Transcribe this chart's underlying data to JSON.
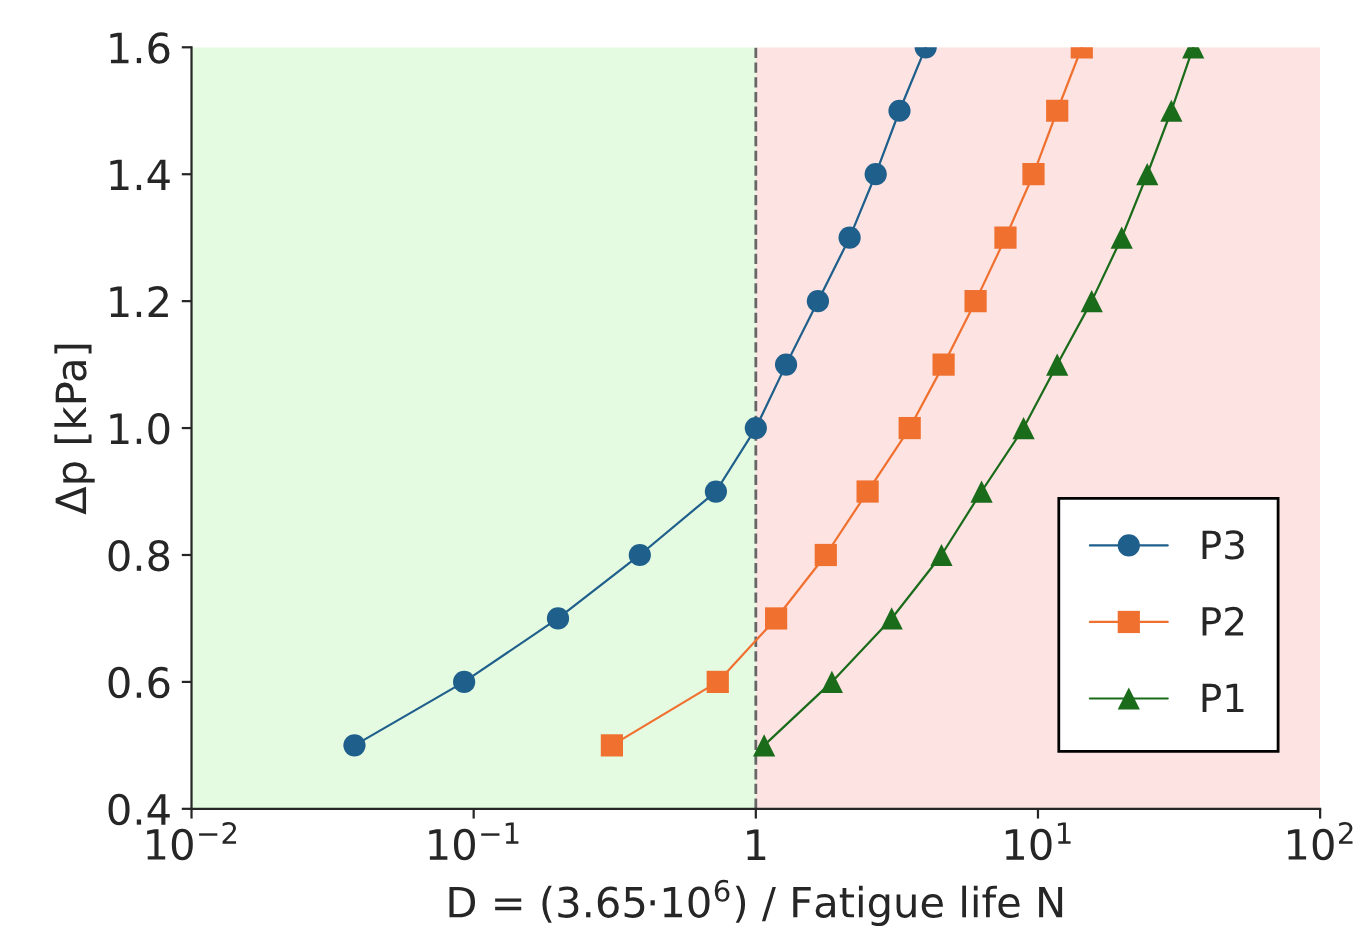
{
  "chart_data": {
    "type": "line",
    "xlabel": "D = (3.65·10$^{6}$) / Fatigue life N",
    "ylabel": "Δp [kPa]",
    "log": "x",
    "xlim": [
      0.01,
      100
    ],
    "ylim": [
      0.4,
      1.6
    ],
    "xticks": [
      {
        "value": 0.01,
        "label": "10$^{−2}$"
      },
      {
        "value": 0.1,
        "label": "10$^{−1}$"
      },
      {
        "value": 1,
        "label": "1"
      },
      {
        "value": 10,
        "label": "10$^{1}$"
      },
      {
        "value": 100,
        "label": "10$^{2}$"
      }
    ],
    "yticks": [
      0.4,
      0.6,
      0.8,
      {
        "value": 1,
        "label": "1.0"
      },
      1.2,
      1.4,
      1.6
    ],
    "grid": false,
    "legend": "bottom right",
    "line_style": "solid",
    "ref_lines": [
      {
        "axis": "x",
        "value": 1,
        "color": "#666666",
        "line_style": "dashed"
      }
    ],
    "bands": [
      {
        "axis": "x",
        "from": 0.01,
        "to": 1,
        "color": "#e4fbe2"
      },
      {
        "axis": "x",
        "from": 1,
        "to": 100,
        "color": "#fde4e2"
      }
    ],
    "series": [
      {
        "name": "P3",
        "color": "#1f5f8b",
        "marker": "circle",
        "x": [
          0.0378,
          0.0925,
          0.199,
          0.388,
          0.722,
          1.0,
          1.28,
          1.66,
          2.15,
          2.66,
          3.23,
          4.0
        ],
        "values": [
          0.5,
          0.6,
          0.7,
          0.8,
          0.9,
          1.0,
          1.1,
          1.2,
          1.3,
          1.4,
          1.5,
          1.6
        ]
      },
      {
        "name": "P2",
        "color": "#f07030",
        "marker": "square",
        "x": [
          0.309,
          0.733,
          1.18,
          1.77,
          2.49,
          3.51,
          4.63,
          6.01,
          7.67,
          9.64,
          11.7,
          14.3
        ],
        "values": [
          0.5,
          0.6,
          0.7,
          0.8,
          0.9,
          1.0,
          1.1,
          1.2,
          1.3,
          1.4,
          1.5,
          1.6
        ]
      },
      {
        "name": "P1",
        "color": "#1a6b1a",
        "marker": "triangle",
        "x": [
          1.07,
          1.86,
          3.03,
          4.55,
          6.31,
          8.89,
          11.7,
          15.5,
          19.8,
          24.4,
          29.7,
          35.5
        ],
        "values": [
          0.5,
          0.6,
          0.7,
          0.8,
          0.9,
          1.0,
          1.1,
          1.2,
          1.3,
          1.4,
          1.5,
          1.6
        ]
      }
    ]
  }
}
